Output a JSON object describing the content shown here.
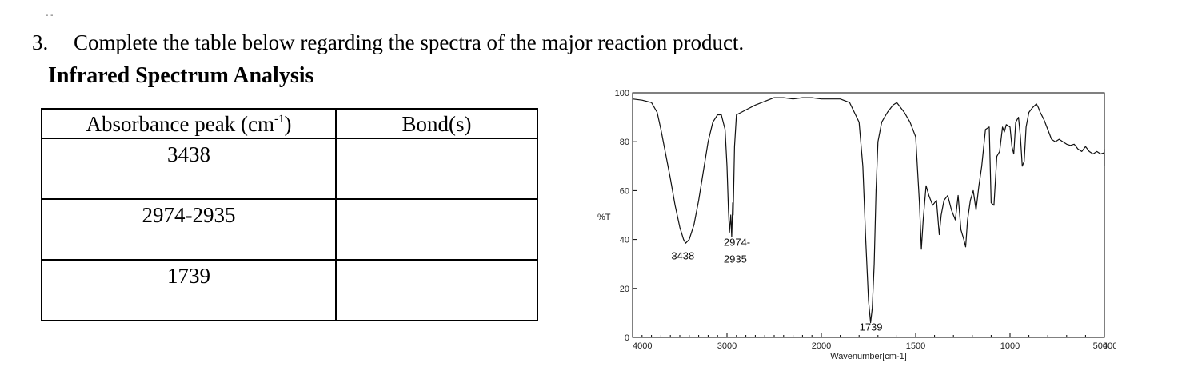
{
  "question": {
    "number": "3.",
    "text": "Complete the table below regarding the spectra of the major reaction product."
  },
  "section_title": "Infrared Spectrum Analysis",
  "table": {
    "headers": {
      "peak_main": "Absorbance peak (cm",
      "peak_sup": "-1",
      "peak_close": ")",
      "bond": "Bond(s)"
    },
    "rows": [
      {
        "peak": "3438",
        "bond": ""
      },
      {
        "peak": "2974-2935",
        "bond": ""
      },
      {
        "peak": "1739",
        "bond": ""
      }
    ]
  },
  "chart_data": {
    "type": "line",
    "xlabel": "Wavenumber[cm-1]",
    "ylabel": "%T",
    "x_reversed": true,
    "xlim": [
      4000,
      400
    ],
    "ylim": [
      0,
      100
    ],
    "x_ticks": [
      "4000",
      "3000",
      "2000",
      "1500",
      "1000",
      "500",
      "400"
    ],
    "y_ticks": [
      "100",
      "80",
      "60",
      "40",
      "20",
      "0"
    ],
    "annotations": [
      {
        "label": "3438",
        "x": 3438,
        "y": 38
      },
      {
        "label": "2974-",
        "x": 2950,
        "y": 41
      },
      {
        "label": "2935",
        "x": 2950,
        "y": 41
      },
      {
        "label": "1739",
        "x": 1739,
        "y": 6
      }
    ],
    "series": [
      {
        "points": [
          [
            4000,
            97.5
          ],
          [
            3900,
            97
          ],
          [
            3800,
            96
          ],
          [
            3740,
            92
          ],
          [
            3700,
            85
          ],
          [
            3650,
            75
          ],
          [
            3600,
            65
          ],
          [
            3550,
            54
          ],
          [
            3500,
            45
          ],
          [
            3460,
            40
          ],
          [
            3438,
            38.5
          ],
          [
            3400,
            40
          ],
          [
            3350,
            46
          ],
          [
            3300,
            56
          ],
          [
            3250,
            68
          ],
          [
            3200,
            80
          ],
          [
            3150,
            88
          ],
          [
            3100,
            91
          ],
          [
            3060,
            91
          ],
          [
            3020,
            85
          ],
          [
            3000,
            70
          ],
          [
            2985,
            52
          ],
          [
            2974,
            43
          ],
          [
            2960,
            50
          ],
          [
            2950,
            41
          ],
          [
            2940,
            55
          ],
          [
            2935,
            50
          ],
          [
            2920,
            78
          ],
          [
            2900,
            91
          ],
          [
            2850,
            92
          ],
          [
            2800,
            93
          ],
          [
            2700,
            95
          ],
          [
            2600,
            96.5
          ],
          [
            2500,
            98
          ],
          [
            2400,
            98
          ],
          [
            2300,
            97.5
          ],
          [
            2200,
            98
          ],
          [
            2100,
            98
          ],
          [
            2000,
            97.5
          ],
          [
            1950,
            97.5
          ],
          [
            1900,
            97.5
          ],
          [
            1850,
            96
          ],
          [
            1800,
            88
          ],
          [
            1780,
            70
          ],
          [
            1765,
            40
          ],
          [
            1750,
            15
          ],
          [
            1739,
            6
          ],
          [
            1730,
            12
          ],
          [
            1720,
            30
          ],
          [
            1710,
            60
          ],
          [
            1700,
            80
          ],
          [
            1680,
            88
          ],
          [
            1650,
            92
          ],
          [
            1620,
            95
          ],
          [
            1600,
            96
          ],
          [
            1560,
            92
          ],
          [
            1530,
            88
          ],
          [
            1500,
            82
          ],
          [
            1480,
            55
          ],
          [
            1470,
            36
          ],
          [
            1460,
            48
          ],
          [
            1445,
            62
          ],
          [
            1430,
            58
          ],
          [
            1410,
            54
          ],
          [
            1390,
            56
          ],
          [
            1375,
            42
          ],
          [
            1365,
            50
          ],
          [
            1350,
            56
          ],
          [
            1330,
            58
          ],
          [
            1310,
            52
          ],
          [
            1290,
            48
          ],
          [
            1275,
            58
          ],
          [
            1260,
            44
          ],
          [
            1245,
            40
          ],
          [
            1235,
            37
          ],
          [
            1225,
            48
          ],
          [
            1210,
            56
          ],
          [
            1195,
            60
          ],
          [
            1180,
            52
          ],
          [
            1165,
            62
          ],
          [
            1150,
            70
          ],
          [
            1130,
            85
          ],
          [
            1110,
            86
          ],
          [
            1100,
            55
          ],
          [
            1085,
            54
          ],
          [
            1070,
            74
          ],
          [
            1055,
            76
          ],
          [
            1040,
            86
          ],
          [
            1030,
            84
          ],
          [
            1020,
            87
          ],
          [
            1000,
            86
          ],
          [
            990,
            78
          ],
          [
            980,
            75
          ],
          [
            970,
            88
          ],
          [
            955,
            90
          ],
          [
            945,
            82
          ],
          [
            935,
            70
          ],
          [
            925,
            72
          ],
          [
            915,
            86
          ],
          [
            900,
            92
          ],
          [
            880,
            94
          ],
          [
            860,
            95.5
          ],
          [
            850,
            94
          ],
          [
            840,
            92
          ],
          [
            820,
            89
          ],
          [
            800,
            85
          ],
          [
            780,
            81
          ],
          [
            760,
            80
          ],
          [
            740,
            81
          ],
          [
            720,
            80
          ],
          [
            700,
            79
          ],
          [
            680,
            78.5
          ],
          [
            660,
            79
          ],
          [
            640,
            77
          ],
          [
            620,
            76
          ],
          [
            600,
            78
          ],
          [
            580,
            76
          ],
          [
            560,
            75
          ],
          [
            540,
            76
          ],
          [
            520,
            75
          ],
          [
            500,
            75.5
          ],
          [
            480,
            74
          ],
          [
            470,
            76
          ],
          [
            460,
            77
          ],
          [
            450,
            76
          ],
          [
            440,
            73
          ],
          [
            430,
            74
          ],
          [
            420,
            71
          ],
          [
            410,
            70
          ],
          [
            400,
            72
          ]
        ]
      }
    ]
  }
}
